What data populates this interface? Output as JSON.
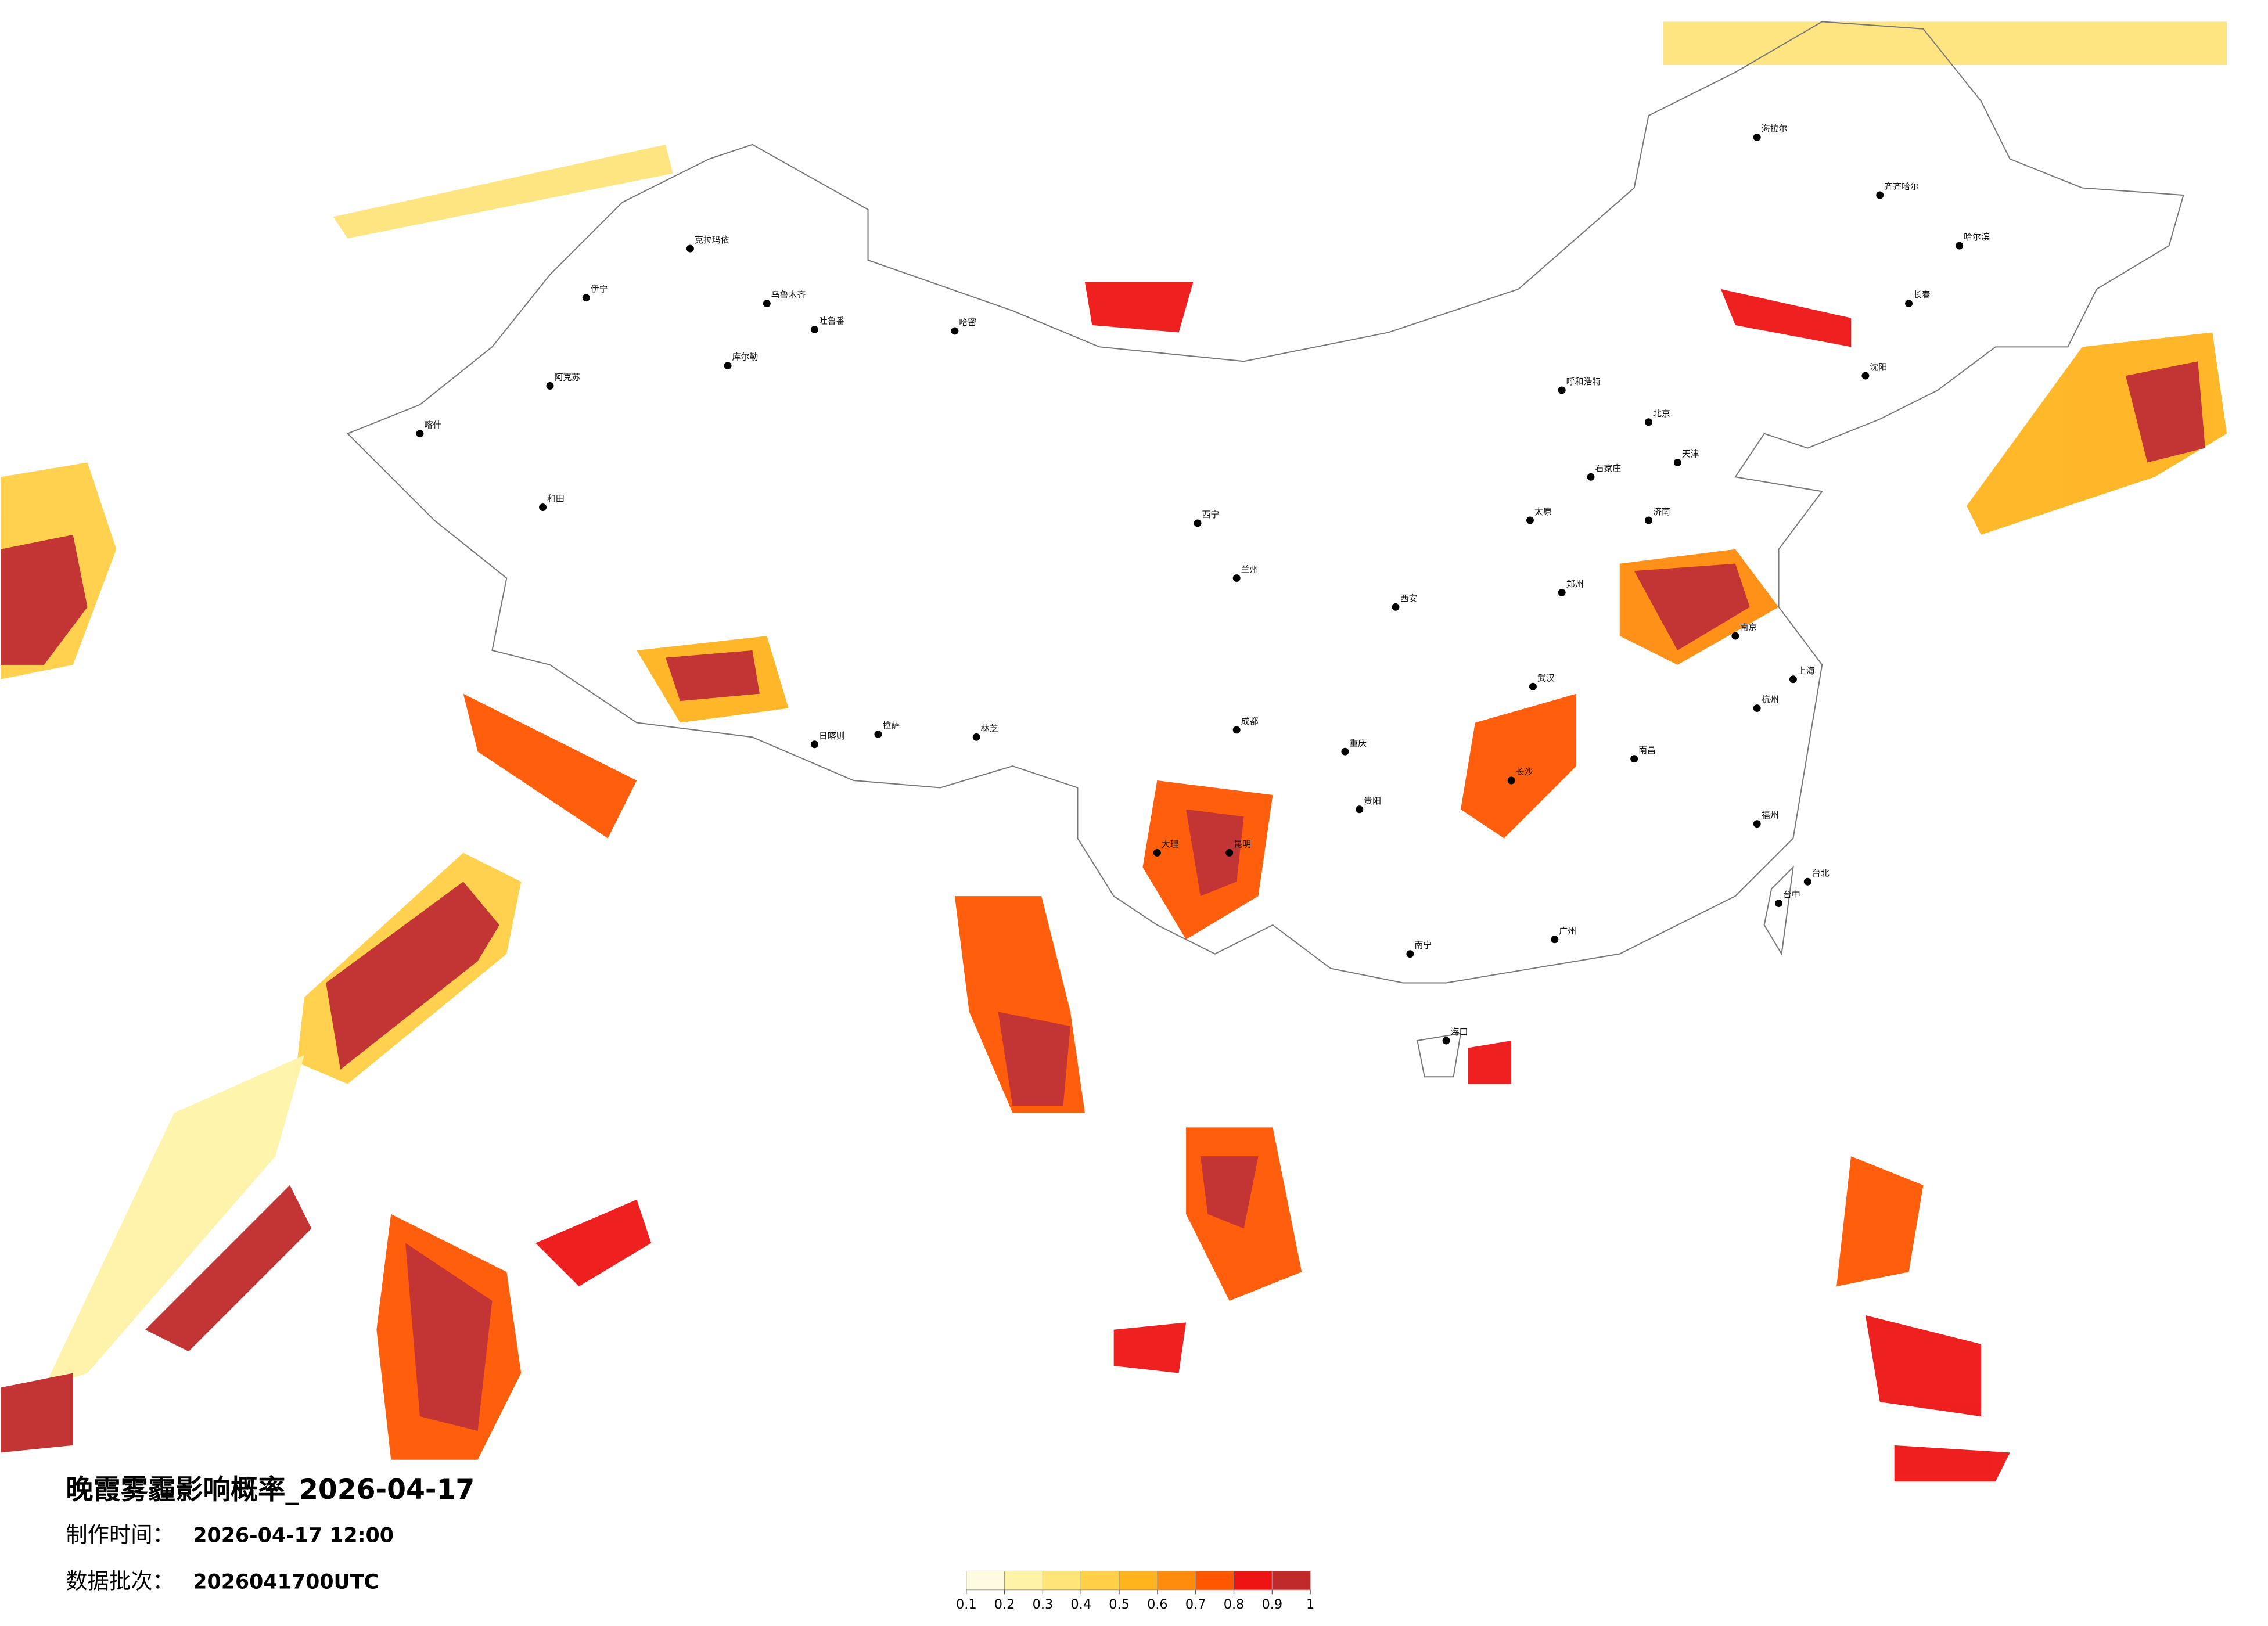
{
  "title": "晚霞雾霾影响概率_2026-04-17",
  "info": [
    {
      "label": "制作时间：",
      "value": "2026-04-17 12:00"
    },
    {
      "label": "数据批次：",
      "value": "2026041700UTC"
    }
  ],
  "legend": {
    "ticks": [
      0.1,
      0.2,
      0.3,
      0.4,
      0.5,
      0.6,
      0.7,
      0.8,
      0.9,
      1
    ],
    "colors": [
      "#fffbe0",
      "#fff3a8",
      "#ffe47a",
      "#ffcf45",
      "#ffb41e",
      "#ff8c0c",
      "#ff5600",
      "#ee1414",
      "#c02a2a"
    ]
  },
  "cities": [
    "伊宁",
    "克拉玛依",
    "乌鲁木齐",
    "吐鲁番",
    "哈密",
    "库尔勒",
    "阿克苏",
    "喀什",
    "和田",
    "拉萨",
    "日喀则",
    "林芝",
    "西宁",
    "兰州",
    "呼和浩特",
    "北京",
    "天津",
    "石家庄",
    "太原",
    "济南",
    "郑州",
    "西安",
    "成都",
    "重庆",
    "武汉",
    "长沙",
    "南昌",
    "南京",
    "上海",
    "杭州",
    "福州",
    "广州",
    "南宁",
    "昆明",
    "贵阳",
    "海口",
    "哈尔滨",
    "长春",
    "沈阳",
    "台北",
    "台中",
    "大理",
    "齐齐哈尔",
    "海拉尔"
  ]
}
